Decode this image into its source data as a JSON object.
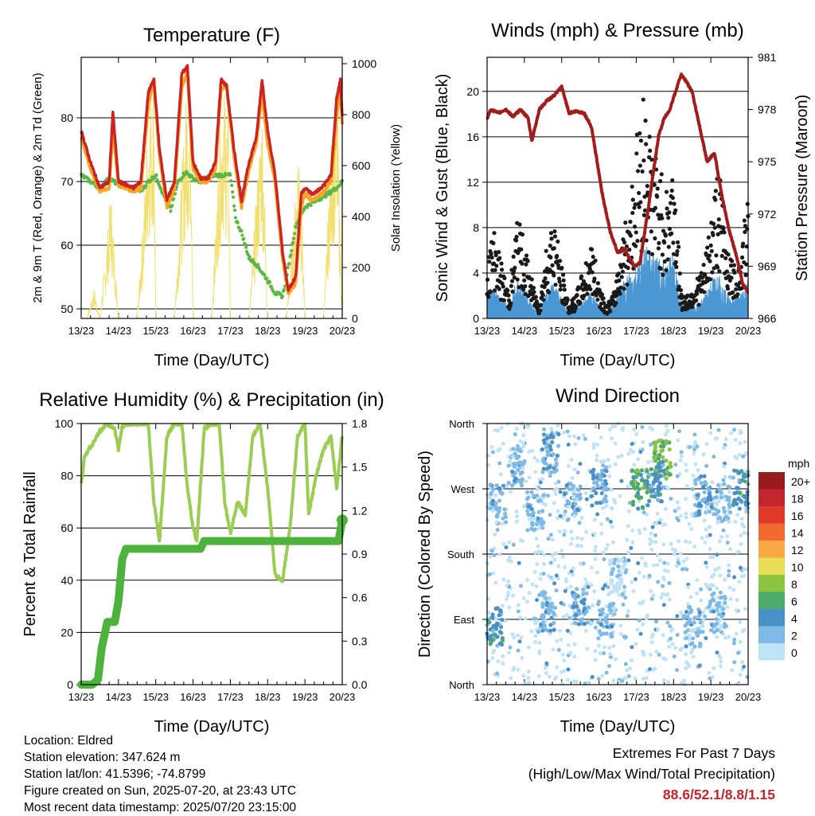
{
  "footer": {
    "location": "Location: Eldred",
    "elevation": "Station elevation: 347.624 m",
    "latlon": "Station lat/lon: 41.5396; -74.8799",
    "created": "Figure created on Sun, 2025-07-20, at 23:43 UTC",
    "latest": "Most recent data timestamp: 2025/07/20 23:15:00"
  },
  "extremes": {
    "title": "Extremes For Past 7 Days",
    "subtitle": "(High/Low/Max Wind/Total Precipitation)",
    "values": "88.6/52.1/8.8/1.15",
    "value_color": "#c0272d"
  },
  "chart_data": [
    {
      "id": "temperature",
      "type": "line",
      "title": "Temperature (F)",
      "xlabel": "Time (Day/UTC)",
      "ylabel": "2m & 9m T (Red, Orange) & 2m Td (Green)",
      "ylabel_right": "Solar Insolation (Yellow)",
      "x_ticks": [
        "13/23",
        "14/23",
        "15/23",
        "16/23",
        "17/23",
        "18/23",
        "19/23",
        "20/23"
      ],
      "xlim": [
        0,
        7
      ],
      "ylim": [
        48.5,
        89.5
      ],
      "y_ticks": [
        50,
        60,
        70,
        80
      ],
      "y2lim": [
        0,
        1025
      ],
      "y2_ticks": [
        0,
        200,
        400,
        600,
        800,
        1000
      ],
      "grid": "horizontal at left ticks",
      "series": [
        {
          "color": "#f5a623",
          "axis": "left",
          "x": [
            0,
            0.25,
            0.5,
            0.75,
            0.85,
            1.0,
            1.2,
            1.4,
            1.6,
            1.8,
            1.95,
            2.1,
            2.3,
            2.5,
            2.7,
            2.85,
            3.0,
            3.2,
            3.4,
            3.6,
            3.75,
            3.9,
            4.1,
            4.3,
            4.5,
            4.7,
            4.85,
            5.0,
            5.2,
            5.4,
            5.55,
            5.75,
            5.9,
            6.0,
            6.2,
            6.45,
            6.7,
            6.85,
            6.95,
            7.0
          ],
          "y": [
            77,
            72,
            68.5,
            69,
            78.5,
            69.5,
            69,
            68.5,
            69,
            82,
            86,
            74,
            66,
            69,
            85,
            87,
            72,
            70,
            70,
            72,
            84.5,
            85,
            74,
            66,
            72,
            76,
            84,
            76,
            70,
            58,
            52.5,
            54,
            66,
            68,
            67,
            68,
            70,
            80,
            85,
            79
          ]
        },
        {
          "color": "#cc2222",
          "axis": "left",
          "x": [
            0,
            0.25,
            0.5,
            0.75,
            0.85,
            1.0,
            1.2,
            1.4,
            1.6,
            1.8,
            1.95,
            2.1,
            2.3,
            2.5,
            2.7,
            2.85,
            3.0,
            3.2,
            3.4,
            3.6,
            3.75,
            3.9,
            4.1,
            4.3,
            4.5,
            4.7,
            4.85,
            5.0,
            5.2,
            5.4,
            5.55,
            5.75,
            5.9,
            6.0,
            6.2,
            6.45,
            6.7,
            6.85,
            6.95,
            7.0
          ],
          "y": [
            78,
            73,
            69,
            70,
            81,
            70,
            69.5,
            69,
            70,
            84,
            86,
            75,
            67,
            70,
            87,
            88,
            73,
            70.5,
            70.5,
            73,
            86,
            85,
            75,
            67,
            73,
            77,
            86,
            78,
            71,
            59,
            53,
            55,
            68,
            69,
            68,
            69,
            71,
            83,
            86,
            80
          ]
        },
        {
          "color": "#5cb845",
          "axis": "left",
          "x": [
            0,
            0.25,
            0.5,
            0.75,
            1.0,
            1.3,
            1.6,
            1.8,
            2.0,
            2.2,
            2.4,
            2.6,
            2.8,
            3.0,
            3.2,
            3.5,
            3.8,
            4.0,
            4.15,
            4.3,
            4.5,
            4.7,
            5.0,
            5.2,
            5.4,
            5.6,
            5.75,
            6.0,
            6.3,
            6.6,
            6.85,
            7.0
          ],
          "y": [
            71,
            70,
            69,
            70.5,
            69.5,
            69,
            68.5,
            70,
            71,
            68,
            65.5,
            70,
            71.5,
            70.5,
            70,
            71,
            71,
            71,
            64,
            62,
            58,
            57,
            54.5,
            52.5,
            52,
            58,
            63,
            66,
            67,
            68,
            69,
            70
          ]
        },
        {
          "color": "#f2e06e",
          "axis": "right",
          "x": [
            0,
            0.15,
            0.35,
            0.5,
            0.65,
            0.8,
            1.0,
            1.2,
            1.5,
            1.7,
            1.8,
            1.95,
            2.0,
            2.2,
            2.5,
            2.7,
            2.85,
            2.95,
            3.0,
            3.2,
            3.5,
            3.7,
            3.8,
            3.95,
            4.0,
            4.2,
            4.5,
            4.7,
            4.85,
            5.0,
            5.2,
            5.5,
            5.7,
            5.85,
            6.0,
            6.2,
            6.5,
            6.7,
            6.85,
            7.0
          ],
          "y": [
            0,
            0,
            120,
            0,
            250,
            520,
            0,
            0,
            0,
            500,
            850,
            1010,
            0,
            0,
            0,
            600,
            980,
            900,
            0,
            0,
            0,
            700,
            950,
            800,
            0,
            0,
            0,
            500,
            880,
            0,
            0,
            0,
            400,
            780,
            0,
            0,
            0,
            700,
            950,
            0
          ]
        }
      ]
    },
    {
      "id": "winds",
      "type": "line",
      "title": "Winds (mph) & Pressure (mb)",
      "xlabel": "Time (Day/UTC)",
      "ylabel": "Sonic Wind & Gust (Blue, Black)",
      "ylabel_right": "Station Pressure (Maroon)",
      "x_ticks": [
        "13/23",
        "14/23",
        "15/23",
        "16/23",
        "17/23",
        "18/23",
        "19/23",
        "20/23"
      ],
      "xlim": [
        0,
        7
      ],
      "ylim": [
        0,
        23
      ],
      "y_ticks": [
        0,
        4,
        8,
        12,
        16,
        20
      ],
      "y2lim": [
        966,
        981
      ],
      "y2_ticks": [
        966,
        969,
        972,
        975,
        978,
        981
      ],
      "grid": "horizontal at left ticks",
      "series": [
        {
          "color": "#1a1a1a",
          "axis": "left",
          "style": "dots",
          "x": [
            0,
            0.2,
            0.4,
            0.6,
            0.8,
            1.0,
            1.2,
            1.4,
            1.6,
            1.8,
            2.0,
            2.2,
            2.4,
            2.6,
            2.8,
            3.0,
            3.2,
            3.4,
            3.6,
            3.8,
            4.0,
            4.2,
            4.4,
            4.6,
            4.8,
            5.0,
            5.2,
            5.4,
            5.6,
            5.8,
            6.0,
            6.2,
            6.4,
            6.6,
            6.8,
            7.0
          ],
          "y": [
            5,
            7,
            4,
            2,
            8,
            6,
            3,
            1,
            6,
            8,
            4,
            1,
            2,
            4,
            6,
            3,
            1,
            2,
            6,
            9,
            14,
            18,
            14,
            12,
            10,
            13,
            2,
            2,
            3,
            4,
            8,
            12,
            7,
            4,
            5,
            10
          ]
        },
        {
          "color": "#4a97d4",
          "axis": "left",
          "style": "area",
          "x": [
            0,
            0.2,
            0.4,
            0.6,
            0.8,
            1.0,
            1.2,
            1.4,
            1.6,
            1.8,
            2.0,
            2.2,
            2.4,
            2.6,
            2.8,
            3.0,
            3.2,
            3.4,
            3.6,
            3.8,
            4.0,
            4.2,
            4.4,
            4.6,
            4.8,
            5.0,
            5.2,
            5.4,
            5.6,
            5.8,
            6.0,
            6.2,
            6.4,
            6.6,
            6.8,
            7.0
          ],
          "y": [
            2,
            2.5,
            1.5,
            1,
            3,
            2.5,
            1,
            0.5,
            2,
            3,
            1.5,
            0.5,
            1,
            1.5,
            2,
            1,
            0.5,
            1,
            2.5,
            3.5,
            4,
            5.5,
            5,
            4.5,
            4,
            5,
            1,
            1,
            1,
            1.5,
            3,
            3.5,
            2,
            1.5,
            2,
            3
          ]
        },
        {
          "color": "#a31c1c",
          "axis": "right",
          "style": "line",
          "x": [
            0,
            0.1,
            0.3,
            0.5,
            0.7,
            0.9,
            1.1,
            1.2,
            1.4,
            1.6,
            1.8,
            2.0,
            2.2,
            2.4,
            2.6,
            2.8,
            2.95,
            3.1,
            3.3,
            3.5,
            3.7,
            3.8,
            3.95,
            4.1,
            4.3,
            4.5,
            4.6,
            4.75,
            4.9,
            5.05,
            5.2,
            5.35,
            5.5,
            5.7,
            5.9,
            6.1,
            6.3,
            6.5,
            6.7,
            6.85,
            7.0
          ],
          "y": [
            977.5,
            978,
            977.8,
            978,
            977.6,
            978,
            977.5,
            976.2,
            978,
            978.5,
            978.8,
            979.3,
            977.8,
            977.9,
            977.8,
            977,
            975,
            973,
            971,
            969.8,
            970,
            969.5,
            969,
            969.2,
            972,
            975,
            976.5,
            977.5,
            978,
            979,
            980,
            979.6,
            979,
            977,
            975,
            975.5,
            973,
            971,
            969.5,
            968,
            967.5
          ]
        }
      ]
    },
    {
      "id": "humidity",
      "type": "line",
      "title": "Relative Humidity (%) & Precipitation (in)",
      "xlabel": "Time (Day/UTC)",
      "ylabel": "Percent & Total Rainfall",
      "x_ticks": [
        "13/23",
        "14/23",
        "15/23",
        "16/23",
        "17/23",
        "18/23",
        "19/23",
        "20/23"
      ],
      "xlim": [
        0,
        7
      ],
      "ylim": [
        0,
        100
      ],
      "y_ticks": [
        0,
        20,
        40,
        60,
        80,
        100
      ],
      "y2lim": [
        0,
        1.8
      ],
      "y2_ticks": [
        "0.0",
        "0.3",
        "0.6",
        "0.9",
        "1.2",
        "1.5",
        "1.8"
      ],
      "grid": "horizontal at left ticks",
      "series": [
        {
          "color": "#9acd52",
          "axis": "left",
          "name_hidden": true,
          "x": [
            0,
            0.1,
            0.3,
            0.5,
            0.7,
            0.9,
            1.0,
            1.1,
            1.3,
            1.5,
            1.8,
            1.95,
            2.1,
            2.3,
            2.5,
            2.7,
            2.85,
            3.0,
            3.1,
            3.3,
            3.5,
            3.7,
            3.85,
            4.0,
            4.2,
            4.4,
            4.6,
            4.8,
            5.0,
            5.2,
            5.4,
            5.6,
            5.8,
            6.0,
            6.1,
            6.3,
            6.5,
            6.7,
            6.85,
            7.0
          ],
          "y": [
            77,
            88,
            92,
            97,
            100,
            98,
            90,
            99,
            100,
            100,
            100,
            70,
            55,
            95,
            100,
            100,
            75,
            60,
            55,
            98,
            100,
            100,
            70,
            58,
            70,
            65,
            95,
            100,
            75,
            42,
            40,
            60,
            95,
            100,
            65,
            80,
            90,
            95,
            75,
            95
          ]
        },
        {
          "color": "#4db33d",
          "axis": "left",
          "style": "thick",
          "x": [
            0,
            0.3,
            0.45,
            0.55,
            0.7,
            0.9,
            1.0,
            1.1,
            1.2,
            1.4,
            1.7,
            2.0,
            2.5,
            3.0,
            3.2,
            3.3,
            3.6,
            4.0,
            4.5,
            5.0,
            5.5,
            6.0,
            6.5,
            6.9,
            7.0
          ],
          "y": [
            0,
            0,
            2,
            14,
            24,
            24,
            32,
            48,
            52,
            52,
            52,
            52,
            52,
            52,
            52,
            55,
            55,
            55,
            55,
            55,
            55,
            55,
            55,
            55,
            63
          ]
        }
      ]
    },
    {
      "id": "direction",
      "type": "scatter",
      "title": "Wind Direction",
      "xlabel": "Time (Day/UTC)",
      "ylabel": "Direction (Colored By Speed)",
      "x_ticks": [
        "13/23",
        "14/23",
        "15/23",
        "16/23",
        "17/23",
        "18/23",
        "19/23",
        "20/23"
      ],
      "xlim": [
        0,
        7
      ],
      "y_tick_labels": [
        "North",
        "East",
        "South",
        "West",
        "North"
      ],
      "ylim": [
        0,
        360
      ],
      "legend_title": "mph",
      "legend_labels": [
        "20+",
        "18",
        "16",
        "14",
        "12",
        "10",
        "8",
        "6",
        "4",
        "2",
        "0"
      ],
      "legend_colors": [
        "#981b1e",
        "#c4262e",
        "#e03a2c",
        "#f26a30",
        "#f9a848",
        "#e8dd57",
        "#8cc43f",
        "#4aab6b",
        "#4b8fc8",
        "#7fb9e6",
        "#bfe3f6"
      ],
      "clusters": [
        {
          "x": 0.3,
          "y": 250,
          "speed": 2
        },
        {
          "x": 0.2,
          "y": 80,
          "speed": 4
        },
        {
          "x": 0.8,
          "y": 300,
          "speed": 2
        },
        {
          "x": 1.3,
          "y": 240,
          "speed": 2
        },
        {
          "x": 1.7,
          "y": 320,
          "speed": 3
        },
        {
          "x": 1.6,
          "y": 100,
          "speed": 2
        },
        {
          "x": 2.3,
          "y": 250,
          "speed": 2
        },
        {
          "x": 2.5,
          "y": 110,
          "speed": 3
        },
        {
          "x": 3.0,
          "y": 270,
          "speed": 3
        },
        {
          "x": 3.2,
          "y": 90,
          "speed": 2
        },
        {
          "x": 3.5,
          "y": 150,
          "speed": 1
        },
        {
          "x": 4.1,
          "y": 270,
          "speed": 6
        },
        {
          "x": 4.7,
          "y": 310,
          "speed": 7
        },
        {
          "x": 4.5,
          "y": 280,
          "speed": 4
        },
        {
          "x": 5.8,
          "y": 260,
          "speed": 3
        },
        {
          "x": 5.5,
          "y": 80,
          "speed": 2
        },
        {
          "x": 6.3,
          "y": 250,
          "speed": 2
        },
        {
          "x": 6.8,
          "y": 270,
          "speed": 4
        },
        {
          "x": 6.2,
          "y": 100,
          "speed": 2
        }
      ]
    }
  ]
}
